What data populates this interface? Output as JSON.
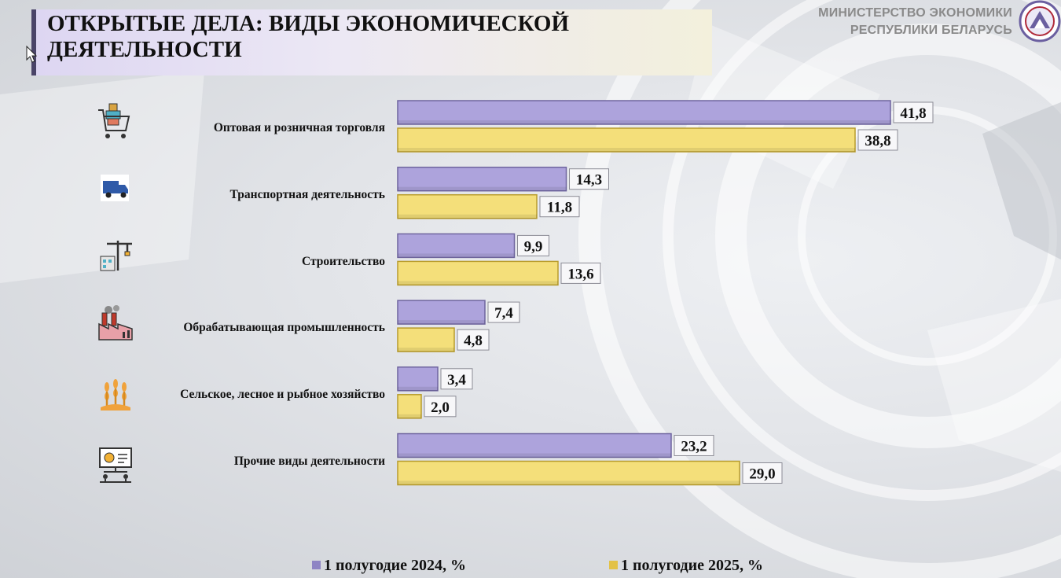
{
  "header": {
    "title": "ОТКРЫТЫЕ ДЕЛА: ВИДЫ ЭКОНОМИЧЕСКОЙ ДЕЯТЕЛЬНОСТИ",
    "ministry_line1": "МИНИСТЕРСТВО ЭКОНОМИКИ",
    "ministry_line2": "РЕСПУБЛИКИ БЕЛАРУСЬ"
  },
  "icons": [
    "shopping-cart-icon",
    "delivery-truck-icon",
    "construction-crane-icon",
    "factory-icon",
    "wheat-icon",
    "presentation-board-icon"
  ],
  "colors": {
    "series1": "#ada3dc",
    "series2": "#f4df7a",
    "accent": "#4a4468"
  },
  "chart_data": {
    "type": "bar",
    "orientation": "horizontal",
    "categories": [
      "Оптовая и розничная торговля",
      "Транспортная деятельность",
      "Строительство",
      "Обрабатывающая промышленность",
      "Сельское, лесное и рыбное хозяйство",
      "Прочие виды деятельности"
    ],
    "series": [
      {
        "name": "1 полугодие 2024, %",
        "values": [
          41.8,
          14.3,
          9.9,
          7.4,
          3.4,
          23.2
        ],
        "labels": [
          "41,8",
          "14,3",
          "9,9",
          "7,4",
          "3,4",
          "23,2"
        ]
      },
      {
        "name": "1 полугодие 2025, %",
        "values": [
          38.8,
          11.8,
          13.6,
          4.8,
          2.0,
          29.0
        ],
        "labels": [
          "38,8",
          "11,8",
          "13,6",
          "4,8",
          "2,0",
          "29,0"
        ]
      }
    ],
    "xlim": [
      0,
      45
    ],
    "legend_position": "bottom",
    "grid": false
  }
}
